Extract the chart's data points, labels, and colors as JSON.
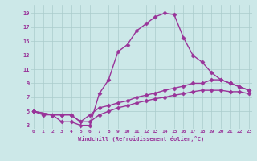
{
  "line1_x": [
    0,
    1,
    2,
    3,
    4,
    5,
    6,
    7,
    8,
    9,
    10,
    11,
    12,
    13,
    14,
    15,
    16,
    17,
    18,
    19,
    20,
    21,
    22,
    23
  ],
  "line1_y": [
    5,
    4.5,
    4.5,
    3.5,
    3.5,
    3.0,
    3.0,
    7.5,
    9.5,
    13.5,
    14.5,
    16.5,
    17.5,
    18.5,
    19.0,
    18.8,
    15.5,
    13.0,
    12.0,
    10.5,
    9.5,
    9.0,
    8.5,
    8.0
  ],
  "line2_x": [
    0,
    2,
    3,
    4,
    5,
    6,
    7,
    8,
    9,
    10,
    11,
    12,
    13,
    14,
    15,
    16,
    17,
    18,
    19,
    20,
    21,
    22,
    23
  ],
  "line2_y": [
    5,
    4.5,
    4.5,
    4.5,
    3.5,
    4.5,
    5.5,
    5.8,
    6.2,
    6.5,
    7.0,
    7.3,
    7.6,
    8.0,
    8.3,
    8.6,
    9.0,
    9.0,
    9.5,
    9.5,
    9.0,
    8.5,
    8.0
  ],
  "line3_x": [
    0,
    2,
    3,
    4,
    5,
    6,
    7,
    8,
    9,
    10,
    11,
    12,
    13,
    14,
    15,
    16,
    17,
    18,
    19,
    20,
    21,
    22,
    23
  ],
  "line3_y": [
    5,
    4.5,
    4.5,
    4.5,
    3.5,
    3.5,
    4.5,
    5.0,
    5.5,
    5.8,
    6.2,
    6.5,
    6.8,
    7.0,
    7.3,
    7.5,
    7.8,
    8.0,
    8.0,
    8.0,
    7.8,
    7.8,
    7.5
  ],
  "color": "#993399",
  "bg_color": "#cce8e8",
  "grid_color": "#aacccc",
  "xlabel": "Windchill (Refroidissement éolien,°C)",
  "yticks": [
    3,
    5,
    7,
    9,
    11,
    13,
    15,
    17,
    19
  ],
  "xticks": [
    0,
    1,
    2,
    3,
    4,
    5,
    6,
    7,
    8,
    9,
    10,
    11,
    12,
    13,
    14,
    15,
    16,
    17,
    18,
    19,
    20,
    21,
    22,
    23
  ],
  "xlim": [
    -0.3,
    23.3
  ],
  "ylim": [
    2.5,
    20.2
  ],
  "marker": "D",
  "markersize": 2.5,
  "linewidth": 1.0
}
